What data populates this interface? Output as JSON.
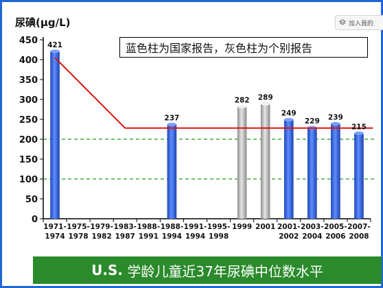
{
  "browser_extension": {
    "label": "加入我的",
    "icon": "layers-icon"
  },
  "chart_data": {
    "type": "bar",
    "ylabel_prefix": "尿碘(",
    "ylabel_unit": "μg/L",
    "ylabel_suffix": ")",
    "legend_note": "蓝色柱为国家报告，灰色柱为个别报告",
    "caption_prefix": "U.S.",
    "caption_text": " 学龄儿童近37年尿碘中位数水平",
    "ylim": [
      0,
      450
    ],
    "yticks": [
      0,
      50,
      100,
      150,
      200,
      250,
      300,
      350,
      400,
      450
    ],
    "categories": [
      [
        "1971-",
        "1974"
      ],
      [
        "1975-",
        "1978"
      ],
      [
        "1979-",
        "1982"
      ],
      [
        "1983-",
        "1987"
      ],
      [
        "1988-",
        "1991"
      ],
      [
        "1988-",
        "1994"
      ],
      [
        "1991-",
        "1994"
      ],
      [
        "1995-",
        "1998"
      ],
      [
        "1999",
        ""
      ],
      [
        "2001",
        ""
      ],
      [
        "2001-",
        "2002"
      ],
      [
        "2003-",
        "2004"
      ],
      [
        "2005-",
        "2006"
      ],
      [
        "2007-",
        "2008"
      ]
    ],
    "bars": [
      {
        "index": 0,
        "value": 421,
        "kind": "national"
      },
      {
        "index": 5,
        "value": 237,
        "kind": "national"
      },
      {
        "index": 8,
        "value": 282,
        "kind": "individual"
      },
      {
        "index": 9,
        "value": 289,
        "kind": "individual"
      },
      {
        "index": 10,
        "value": 249,
        "kind": "national"
      },
      {
        "index": 11,
        "value": 229,
        "kind": "national"
      },
      {
        "index": 12,
        "value": 239,
        "kind": "national"
      },
      {
        "index": 13,
        "value": 215,
        "kind": "national"
      }
    ],
    "trend_line": {
      "points": [
        [
          0,
          405
        ],
        [
          3,
          228
        ],
        [
          13.6,
          228
        ]
      ],
      "color": "#e01010"
    },
    "reference_lines": [
      {
        "value": 200,
        "color": "#1a9a1a"
      },
      {
        "value": 100,
        "color": "#1a9a1a"
      }
    ],
    "colors": {
      "national": "#2f63e0",
      "individual": "#b8b8b8",
      "caption_bg": "#2b8a2b",
      "frame": "#1e66d6"
    },
    "grid": false
  }
}
